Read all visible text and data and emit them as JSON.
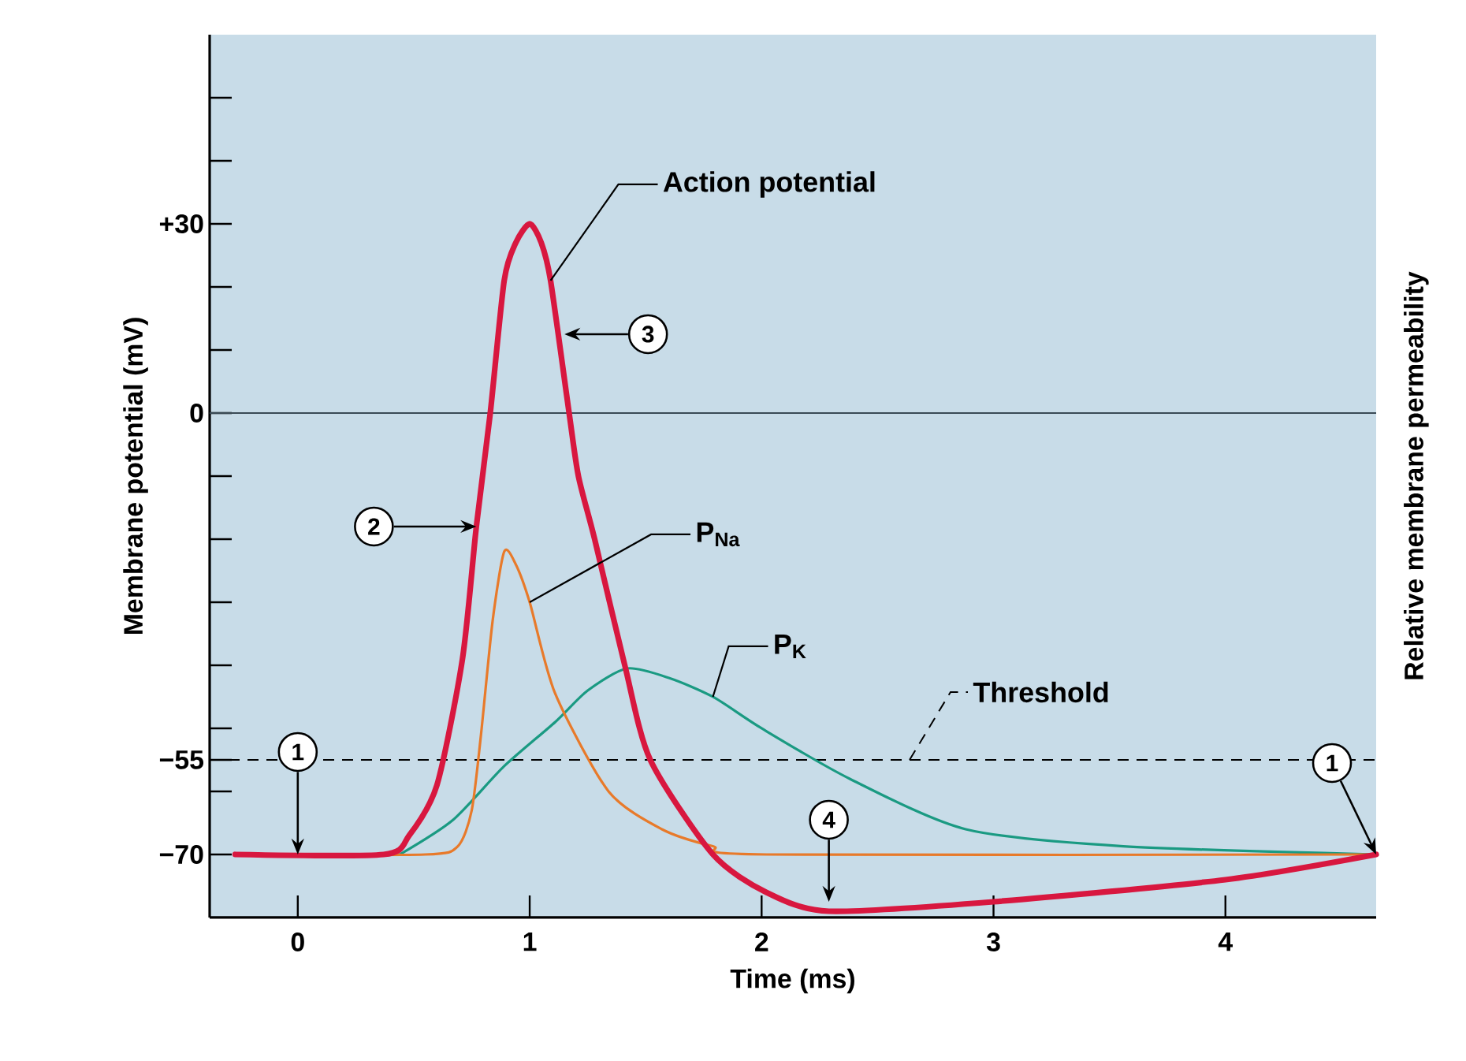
{
  "chart_data": {
    "type": "line",
    "xlabel": "Time (ms)",
    "ylabel": "Membrane potential (mV)",
    "y2label": "Relative membrane permeability",
    "xlim": [
      -0.38,
      4.65
    ],
    "ylim": [
      -80,
      60
    ],
    "xticks": [
      0,
      1,
      2,
      3,
      4
    ],
    "yticks": [
      {
        "value": 50,
        "label": null
      },
      {
        "value": 40,
        "label": null
      },
      {
        "value": 30,
        "label": "+30"
      },
      {
        "value": 20,
        "label": null
      },
      {
        "value": 10,
        "label": null
      },
      0,
      {
        "value": -10,
        "label": null
      },
      {
        "value": -20,
        "label": null
      },
      {
        "value": -30,
        "label": null
      },
      {
        "value": -40,
        "label": null
      },
      {
        "value": -50,
        "label": null
      },
      {
        "value": -55,
        "label": "−55"
      },
      {
        "value": -60,
        "label": null
      },
      {
        "value": -70,
        "label": "−70"
      }
    ],
    "series": [
      {
        "name": "Action potential",
        "color": "#d8173f",
        "x": [
          -0.27,
          0.37,
          0.48,
          0.6,
          0.71,
          0.77,
          0.83,
          0.89,
          0.94,
          1.0,
          1.05,
          1.09,
          1.17,
          1.21,
          1.28,
          1.41,
          1.52,
          1.79,
          2.02,
          2.29,
          3.0,
          4.0,
          4.65
        ],
        "values": [
          -70,
          -70,
          -67,
          -59,
          -39,
          -18,
          0,
          21,
          27,
          30,
          27,
          21,
          0,
          -10,
          -20,
          -40,
          -55,
          -70,
          -76,
          -79,
          -77.5,
          -74,
          -70
        ]
      },
      {
        "name": "P$_{Na}$",
        "color": "#e87a2a",
        "x": [
          -0.27,
          0.55,
          0.69,
          0.75,
          0.79,
          0.84,
          0.89,
          0.94,
          1.0,
          1.11,
          1.34,
          1.57,
          1.79,
          2.02,
          4.65
        ],
        "values": [
          -70,
          -70,
          -68.7,
          -63,
          -51,
          -33,
          -22,
          -24,
          -30,
          -44.5,
          -60,
          -66,
          -68.7,
          -70,
          -70
        ]
      },
      {
        "name": "P$_{K}$",
        "color": "#1a9a82",
        "x": [
          0.44,
          0.67,
          0.89,
          1.11,
          1.25,
          1.42,
          1.6,
          1.79,
          2.0,
          2.38,
          2.88,
          3.56,
          4.65
        ],
        "values": [
          -70,
          -64.5,
          -56,
          -49,
          -44,
          -40.5,
          -42,
          -45,
          -50,
          -58,
          -66,
          -68.7,
          -70
        ]
      }
    ],
    "ref_lines": [
      {
        "axis": "y",
        "value": 0,
        "color": "#3a4a55"
      },
      {
        "axis": "y",
        "value": -55,
        "label": "Threshold",
        "line_style": "dashed",
        "color": "#000000"
      }
    ],
    "annotations": [
      {
        "text": "1",
        "x": 0,
        "y": -70
      },
      {
        "text": "2",
        "x": 0.77,
        "y": -18
      },
      {
        "text": "3",
        "x": 1.15,
        "y": 12.5
      },
      {
        "text": "4",
        "x": 2.29,
        "y": -77.5
      },
      {
        "text": "1",
        "x": 4.65,
        "y": -70
      }
    ]
  }
}
